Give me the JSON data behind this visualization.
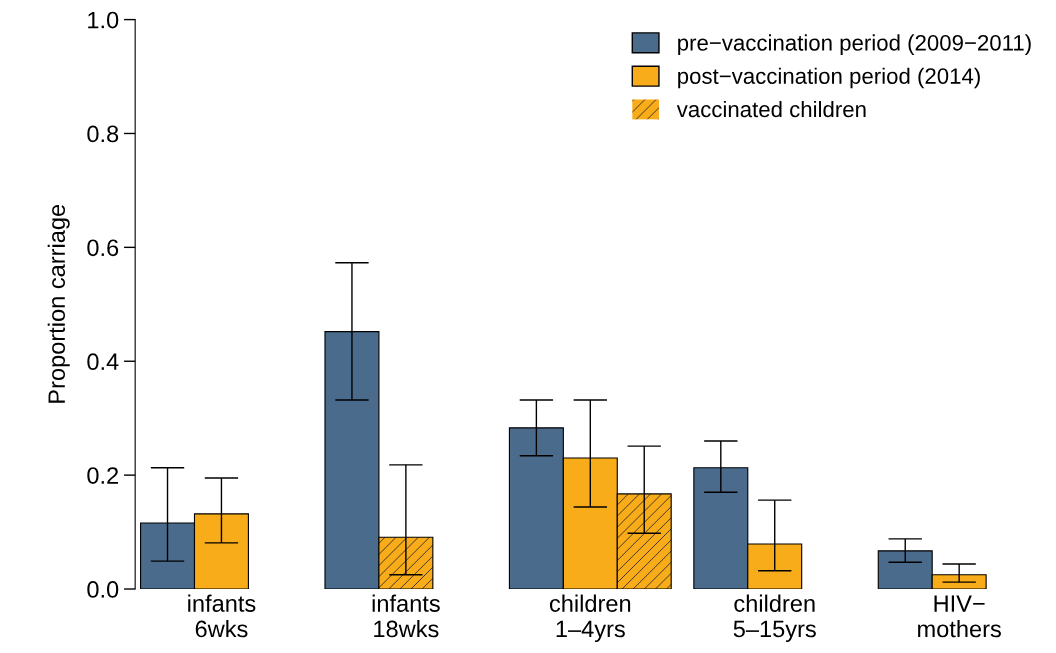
{
  "chart_data": {
    "type": "bar",
    "ylabel": "Proportion carriage",
    "categories": [
      "infants\n6wks",
      "infants\n18wks",
      "children\n1–4yrs",
      "children\n5–15yrs",
      "HIV−\nmothers"
    ],
    "series": [
      {
        "name": "pre−vaccination period (2009−2011)",
        "color": "#4a6b8c",
        "values": [
          0.116,
          0.452,
          0.283,
          0.213,
          0.067
        ],
        "errors": [
          [
            0.049,
            0.213
          ],
          [
            0.332,
            0.573
          ],
          [
            0.234,
            0.332
          ],
          [
            0.17,
            0.26
          ],
          [
            0.047,
            0.088
          ]
        ]
      },
      {
        "name": "post−vaccination period (2014)",
        "color": "#f9ac1a",
        "values": [
          0.132,
          null,
          0.23,
          0.079,
          0.025
        ],
        "errors": [
          [
            0.081,
            0.195
          ],
          null,
          [
            0.144,
            0.332
          ],
          [
            0.032,
            0.156
          ],
          [
            0.012,
            0.044
          ]
        ]
      },
      {
        "name": "vaccinated children",
        "color": "#f9ac1a",
        "values": [
          null,
          0.091,
          0.167,
          null,
          null
        ],
        "errors": [
          null,
          [
            0.025,
            0.218
          ],
          [
            0.098,
            0.251
          ],
          null,
          null
        ]
      }
    ],
    "ylim": [
      0,
      1.0
    ],
    "yticks": [
      {
        "value": 0,
        "label": "0.0"
      },
      {
        "value": 0.2,
        "label": "0.2"
      },
      {
        "value": 0.4,
        "label": "0.4"
      },
      {
        "value": 0.6,
        "label": "0.6"
      },
      {
        "value": 0.8,
        "label": "0.8"
      },
      {
        "value": 1.0,
        "label": "1.0"
      }
    ],
    "grid": false,
    "legend": "top right"
  }
}
